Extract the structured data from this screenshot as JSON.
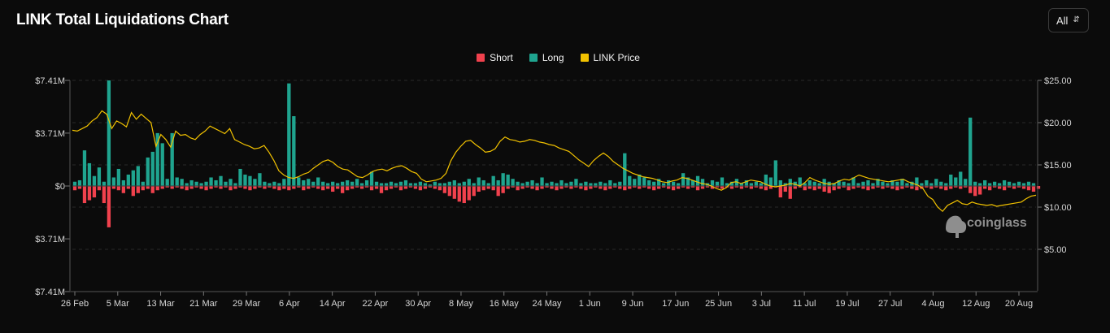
{
  "header": {
    "title": "LINK Total Liquidations Chart",
    "range_select_value": "All"
  },
  "legend": [
    {
      "label": "Short",
      "color": "#f0414d"
    },
    {
      "label": "Long",
      "color": "#1fa48f"
    },
    {
      "label": "LINK Price",
      "color": "#f2c200"
    }
  ],
  "watermark": "coinglass",
  "chart_data": {
    "type": "bar",
    "left_axis": {
      "ticks": [
        "$7.41M",
        "$3.71M",
        "$0",
        "$3.71M",
        "$7.41M"
      ],
      "values": [
        7.41,
        3.71,
        0,
        -3.71,
        -7.41
      ],
      "range": [
        -7.41,
        7.41
      ],
      "unit": "USD millions"
    },
    "right_axis": {
      "ticks": [
        "$25.00",
        "$20.00",
        "$15.00",
        "$10.00",
        "$5.00"
      ],
      "values": [
        25,
        20,
        15,
        10,
        5
      ],
      "range": [
        0,
        25.0
      ]
    },
    "x_ticks": [
      "26 Feb",
      "5 Mar",
      "13 Mar",
      "21 Mar",
      "29 Mar",
      "6 Apr",
      "14 Apr",
      "22 Apr",
      "30 Apr",
      "8 May",
      "16 May",
      "24 May",
      "1 Jun",
      "9 Jun",
      "17 Jun",
      "25 Jun",
      "3 Jul",
      "11 Jul",
      "19 Jul",
      "27 Jul",
      "4 Aug",
      "12 Aug",
      "20 Aug"
    ],
    "start_date": "26 Feb",
    "series": [
      {
        "name": "Long",
        "color": "#1fa48f",
        "values": [
          0.3,
          0.4,
          2.5,
          1.6,
          0.7,
          1.3,
          0.3,
          7.41,
          0.6,
          1.2,
          0.4,
          0.8,
          1.1,
          1.4,
          0.3,
          2.0,
          2.4,
          3.71,
          3.0,
          0.5,
          3.71,
          0.6,
          0.5,
          0.2,
          0.4,
          0.3,
          0.2,
          0.3,
          0.6,
          0.4,
          0.7,
          0.3,
          0.5,
          0.2,
          1.2,
          0.8,
          0.7,
          0.5,
          0.9,
          0.3,
          0.2,
          0.3,
          0.2,
          0.5,
          7.2,
          4.9,
          0.6,
          0.4,
          0.5,
          0.3,
          0.6,
          0.3,
          0.2,
          0.3,
          0.2,
          0.3,
          0.4,
          0.3,
          0.5,
          0.2,
          0.4,
          1.0,
          0.3,
          0.2,
          0.2,
          0.3,
          0.2,
          0.3,
          0.4,
          0.2,
          0.2,
          0.3,
          0.2,
          0.1,
          0.3,
          0.2,
          0.2,
          0.3,
          0.4,
          0.2,
          0.3,
          0.5,
          0.2,
          0.6,
          0.4,
          0.2,
          0.7,
          0.4,
          0.9,
          0.8,
          0.5,
          0.3,
          0.2,
          0.3,
          0.4,
          0.2,
          0.6,
          0.2,
          0.3,
          0.2,
          0.4,
          0.2,
          0.3,
          0.5,
          0.2,
          0.3,
          0.2,
          0.2,
          0.3,
          0.2,
          0.4,
          0.2,
          0.3,
          2.3,
          0.7,
          0.5,
          0.8,
          0.6,
          0.4,
          0.3,
          0.5,
          0.2,
          0.4,
          0.3,
          0.2,
          0.9,
          0.6,
          0.4,
          0.7,
          0.5,
          0.2,
          0.4,
          0.3,
          0.6,
          0.2,
          0.3,
          0.5,
          0.2,
          0.4,
          0.2,
          0.3,
          0.2,
          0.8,
          0.6,
          1.8,
          0.4,
          0.2,
          0.5,
          0.3,
          0.6,
          0.2,
          0.4,
          0.3,
          0.2,
          0.5,
          0.3,
          0.2,
          0.4,
          0.3,
          0.2,
          0.6,
          0.2,
          0.3,
          0.4,
          0.2,
          0.5,
          0.3,
          0.2,
          0.4,
          0.3,
          0.5,
          0.2,
          0.3,
          0.6,
          0.2,
          0.4,
          0.2,
          0.5,
          0.3,
          0.2,
          0.8,
          0.6,
          1.0,
          0.5,
          4.8,
          0.3,
          0.2,
          0.4,
          0.2,
          0.3,
          0.2,
          0.4,
          0.3,
          0.2,
          0.3,
          0.2,
          0.3,
          0.2
        ]
      },
      {
        "name": "Short",
        "color": "#f0414d",
        "values": [
          -0.3,
          -0.2,
          -1.2,
          -1.0,
          -0.8,
          -0.3,
          -1.2,
          -2.9,
          -0.2,
          -0.3,
          -0.5,
          -0.2,
          -0.7,
          -0.5,
          -0.3,
          -0.2,
          -0.5,
          -0.3,
          -0.2,
          -0.1,
          -0.2,
          -0.1,
          -0.2,
          -0.3,
          -0.2,
          -0.1,
          -0.2,
          -0.3,
          -0.2,
          -0.1,
          -0.2,
          -0.1,
          -0.3,
          -0.2,
          -0.1,
          -0.2,
          -0.3,
          -0.2,
          -0.1,
          -0.2,
          -0.1,
          -0.2,
          -0.3,
          -0.2,
          -0.3,
          -0.2,
          -0.1,
          -0.3,
          -0.2,
          -0.1,
          -0.2,
          -0.3,
          -0.2,
          -0.4,
          -0.2,
          -0.5,
          -0.3,
          -0.2,
          -0.1,
          -0.2,
          -0.1,
          -0.3,
          -0.2,
          -0.5,
          -0.3,
          -0.2,
          -0.1,
          -0.3,
          -0.2,
          -0.1,
          -0.2,
          -0.3,
          -0.2,
          -0.1,
          -0.2,
          -0.3,
          -0.5,
          -0.7,
          -0.9,
          -1.1,
          -1.2,
          -1.0,
          -0.7,
          -0.4,
          -0.3,
          -0.2,
          -0.3,
          -0.7,
          -0.5,
          -0.2,
          -0.1,
          -0.3,
          -0.2,
          -0.1,
          -0.2,
          -0.3,
          -0.2,
          -0.1,
          -0.2,
          -0.3,
          -0.2,
          -0.1,
          -0.2,
          -0.1,
          -0.2,
          -0.3,
          -0.2,
          -0.1,
          -0.2,
          -0.3,
          -0.2,
          -0.1,
          -0.2,
          -0.3,
          -0.2,
          -0.1,
          -0.2,
          -0.1,
          -0.2,
          -0.3,
          -0.2,
          -0.1,
          -0.2,
          -0.3,
          -0.2,
          -0.1,
          -0.2,
          -0.1,
          -0.3,
          -0.2,
          -0.1,
          -0.2,
          -0.1,
          -0.2,
          -0.1,
          -0.2,
          -0.1,
          -0.2,
          -0.1,
          -0.2,
          -0.1,
          -0.2,
          -0.3,
          -0.2,
          -0.1,
          -0.8,
          -0.4,
          -0.9,
          -0.2,
          -0.1,
          -0.3,
          -0.2,
          -0.3,
          -0.2,
          -0.4,
          -0.5,
          -0.3,
          -0.2,
          -0.1,
          -0.3,
          -0.2,
          -0.1,
          -0.2,
          -0.3,
          -0.2,
          -0.1,
          -0.2,
          -0.1,
          -0.2,
          -0.3,
          -0.2,
          -0.1,
          -0.2,
          -0.3,
          -0.2,
          -0.1,
          -0.2,
          -0.1,
          -0.2,
          -0.3,
          -0.2,
          -0.1,
          -0.2,
          -0.1,
          -0.5,
          -0.7,
          -0.6,
          -0.2,
          -0.3,
          -0.1,
          -0.2,
          -0.3,
          -0.1,
          -0.2,
          -0.1,
          -0.2,
          -0.3,
          -0.4,
          -0.2
        ]
      },
      {
        "name": "LINK Price",
        "color": "#f2c200",
        "axis": "right",
        "values": [
          19.1,
          19.0,
          19.3,
          19.6,
          20.2,
          20.6,
          21.4,
          21.0,
          19.3,
          20.2,
          19.9,
          19.5,
          21.2,
          20.4,
          21.0,
          20.5,
          20.0,
          17.2,
          18.6,
          18.0,
          17.1,
          19.0,
          18.5,
          18.6,
          18.2,
          18.0,
          18.6,
          19.0,
          19.6,
          19.3,
          19.0,
          18.7,
          19.3,
          18.0,
          17.7,
          17.4,
          17.2,
          16.9,
          17.0,
          17.3,
          16.5,
          15.5,
          14.3,
          13.8,
          13.5,
          13.4,
          13.6,
          13.9,
          14.1,
          14.6,
          15.0,
          15.4,
          15.6,
          15.3,
          14.8,
          14.5,
          14.4,
          14.0,
          13.6,
          13.5,
          13.8,
          14.2,
          14.4,
          14.5,
          14.3,
          14.6,
          14.8,
          14.9,
          14.6,
          14.2,
          14.0,
          13.3,
          13.0,
          13.1,
          13.2,
          13.4,
          14.0,
          15.5,
          16.5,
          17.2,
          17.8,
          17.9,
          17.4,
          17.0,
          16.5,
          16.6,
          16.9,
          17.8,
          18.3,
          18.0,
          17.9,
          17.7,
          17.8,
          18.0,
          17.9,
          17.7,
          17.6,
          17.4,
          17.3,
          17.0,
          16.8,
          16.6,
          16.1,
          15.6,
          15.2,
          14.8,
          15.5,
          16.0,
          16.4,
          16.0,
          15.4,
          15.0,
          14.6,
          14.3,
          14.0,
          13.8,
          13.6,
          13.5,
          13.4,
          13.2,
          13.0,
          12.9,
          13.1,
          13.2,
          13.5,
          13.4,
          13.2,
          13.0,
          12.8,
          12.7,
          12.5,
          12.2,
          12.0,
          12.3,
          12.9,
          13.0,
          12.8,
          13.0,
          13.2,
          13.1,
          13.0,
          12.7,
          12.5,
          12.4,
          12.5,
          12.6,
          12.8,
          12.7,
          12.5,
          12.9,
          13.5,
          13.2,
          13.0,
          12.8,
          12.7,
          12.8,
          13.1,
          13.3,
          13.2,
          13.5,
          13.8,
          13.6,
          13.4,
          13.3,
          13.2,
          13.1,
          13.0,
          13.1,
          13.2,
          13.3,
          13.0,
          12.8,
          12.6,
          12.2,
          11.3,
          10.9,
          10.0,
          9.5,
          10.2,
          10.5,
          10.8,
          10.4,
          10.3,
          10.6,
          10.4,
          10.3,
          10.2,
          10.3,
          10.1,
          10.2,
          10.3,
          10.4,
          10.5,
          10.6,
          11.0,
          11.3,
          11.4
        ]
      }
    ]
  }
}
